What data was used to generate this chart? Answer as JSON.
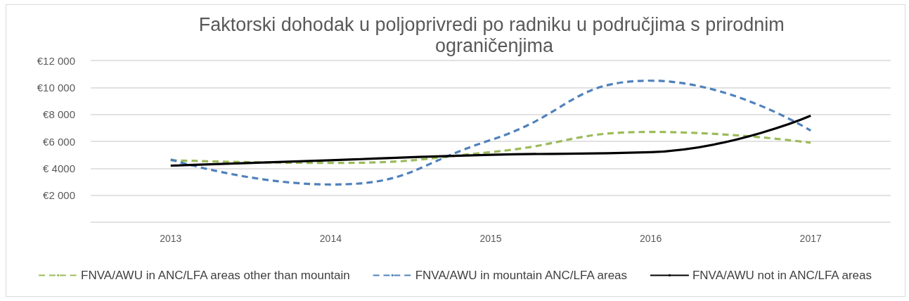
{
  "chart_data": {
    "type": "line",
    "title": "Faktorski dohodak u poljoprivredi po radniku u područjima s prirodnim ograničenjima",
    "categories": [
      "2013",
      "2014",
      "2015",
      "2016",
      "2017"
    ],
    "series": [
      {
        "name": "FNVA/AWU in ANC/LFA areas other than mountain",
        "color": "#9bbb59",
        "line_style": "dashed",
        "values": [
          4600,
          4400,
          5200,
          6700,
          5900
        ]
      },
      {
        "name": "FNVA/AWU in mountain ANC/LFA areas",
        "color": "#4f81bd",
        "line_style": "dashed",
        "values": [
          4650,
          2800,
          6100,
          10500,
          6800
        ]
      },
      {
        "name": "FNVA/AWU not in ANC/LFA areas",
        "color": "#000000",
        "line_style": "solid",
        "values": [
          4200,
          4600,
          5000,
          5200,
          7900
        ]
      }
    ],
    "ylim": [
      0,
      12000
    ],
    "yticks": [
      {
        "value": 0,
        "label": null
      },
      {
        "value": 2000,
        "label": "€2 000"
      },
      {
        "value": 4000,
        "label": "€ 4000"
      },
      {
        "value": 6000,
        "label": "€6 000"
      },
      {
        "value": 8000,
        "label": "€8 000"
      },
      {
        "value": 10000,
        "label": "€10 000"
      },
      {
        "value": 12000,
        "label": "€12 000"
      }
    ],
    "grid": "y",
    "legend": "bottom",
    "marker": "none"
  }
}
